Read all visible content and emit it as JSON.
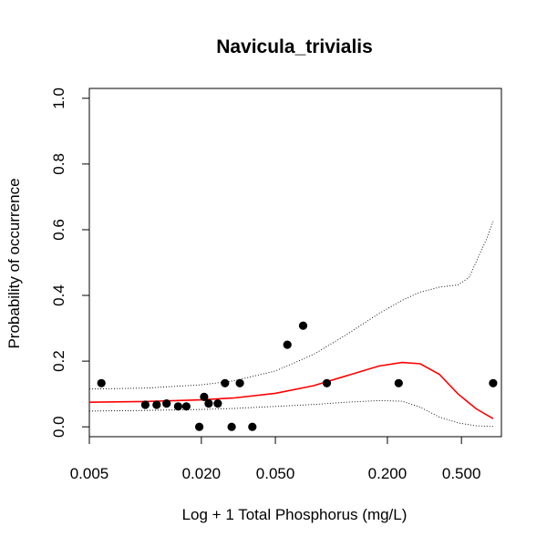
{
  "chart_data": {
    "type": "scatter",
    "title": "Navicula_trivialis",
    "xlabel": "Log + 1 Total Phosphorus (mg/L)",
    "ylabel": "Probability of occurrence",
    "x_scale": "log",
    "xlim": [
      0.005,
      0.82
    ],
    "ylim": [
      -0.03,
      1.03
    ],
    "x_ticks": [
      0.005,
      0.02,
      0.05,
      0.2,
      0.5
    ],
    "x_tick_labels": [
      "0.005",
      "0.020",
      "0.050",
      "0.200",
      "0.500"
    ],
    "y_ticks": [
      0.0,
      0.2,
      0.4,
      0.6,
      0.8,
      1.0
    ],
    "y_tick_labels": [
      "0.0",
      "0.2",
      "0.4",
      "0.6",
      "0.8",
      "1.0"
    ],
    "grid": false,
    "legend": "none",
    "colors": {
      "points": "#000000",
      "fit": "#ff0000",
      "ci": "#000000"
    },
    "points": [
      {
        "x": 0.0058,
        "y": 0.133
      },
      {
        "x": 0.01,
        "y": 0.067
      },
      {
        "x": 0.0115,
        "y": 0.067
      },
      {
        "x": 0.013,
        "y": 0.071
      },
      {
        "x": 0.015,
        "y": 0.062
      },
      {
        "x": 0.0166,
        "y": 0.062
      },
      {
        "x": 0.0195,
        "y": 0.0
      },
      {
        "x": 0.0207,
        "y": 0.091
      },
      {
        "x": 0.0219,
        "y": 0.071
      },
      {
        "x": 0.0245,
        "y": 0.071
      },
      {
        "x": 0.0268,
        "y": 0.133
      },
      {
        "x": 0.0291,
        "y": 0.0
      },
      {
        "x": 0.0322,
        "y": 0.133
      },
      {
        "x": 0.0376,
        "y": 0.0
      },
      {
        "x": 0.058,
        "y": 0.25
      },
      {
        "x": 0.0705,
        "y": 0.308
      },
      {
        "x": 0.0945,
        "y": 0.133
      },
      {
        "x": 0.23,
        "y": 0.133
      },
      {
        "x": 0.74,
        "y": 0.133
      }
    ],
    "series": [
      {
        "role": "fit",
        "x": [
          0.005,
          0.01,
          0.02,
          0.03,
          0.05,
          0.08,
          0.12,
          0.18,
          0.24,
          0.3,
          0.38,
          0.48,
          0.6,
          0.74
        ],
        "y": [
          0.075,
          0.077,
          0.082,
          0.088,
          0.102,
          0.125,
          0.155,
          0.185,
          0.196,
          0.192,
          0.16,
          0.1,
          0.055,
          0.025
        ]
      },
      {
        "role": "upper-ci",
        "x": [
          0.005,
          0.01,
          0.02,
          0.03,
          0.05,
          0.08,
          0.12,
          0.18,
          0.24,
          0.3,
          0.38,
          0.48,
          0.55,
          0.62,
          0.68,
          0.74
        ],
        "y": [
          0.115,
          0.118,
          0.128,
          0.14,
          0.17,
          0.22,
          0.28,
          0.345,
          0.385,
          0.41,
          0.425,
          0.432,
          0.455,
          0.52,
          0.57,
          0.625
        ]
      },
      {
        "role": "lower-ci",
        "x": [
          0.005,
          0.01,
          0.02,
          0.03,
          0.05,
          0.08,
          0.12,
          0.18,
          0.24,
          0.3,
          0.38,
          0.48,
          0.6,
          0.74
        ],
        "y": [
          0.048,
          0.05,
          0.053,
          0.056,
          0.062,
          0.068,
          0.075,
          0.08,
          0.078,
          0.06,
          0.03,
          0.012,
          0.003,
          0.001
        ]
      }
    ]
  }
}
